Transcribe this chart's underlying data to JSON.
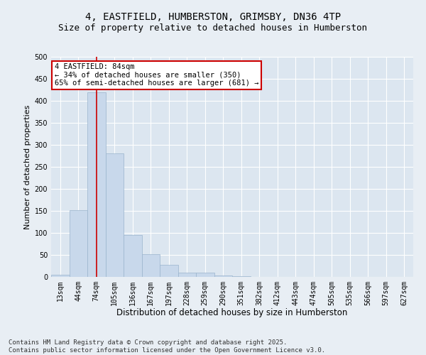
{
  "title_line1": "4, EASTFIELD, HUMBERSTON, GRIMSBY, DN36 4TP",
  "title_line2": "Size of property relative to detached houses in Humberston",
  "xlabel": "Distribution of detached houses by size in Humberston",
  "ylabel": "Number of detached properties",
  "bar_color": "#c8d8eb",
  "bar_edge_color": "#9ab4cc",
  "categories": [
    "13sqm",
    "44sqm",
    "74sqm",
    "105sqm",
    "136sqm",
    "167sqm",
    "197sqm",
    "228sqm",
    "259sqm",
    "290sqm",
    "351sqm",
    "382sqm",
    "412sqm",
    "443sqm",
    "474sqm",
    "505sqm",
    "535sqm",
    "566sqm",
    "597sqm",
    "627sqm"
  ],
  "values": [
    5,
    152,
    420,
    280,
    95,
    52,
    28,
    10,
    10,
    3,
    2,
    0,
    0,
    0,
    0,
    0,
    0,
    0,
    0,
    0
  ],
  "ylim": [
    0,
    500
  ],
  "yticks": [
    0,
    50,
    100,
    150,
    200,
    250,
    300,
    350,
    400,
    450,
    500
  ],
  "red_line_x": 2,
  "annotation_text": "4 EASTFIELD: 84sqm\n← 34% of detached houses are smaller (350)\n65% of semi-detached houses are larger (681) →",
  "annotation_box_color": "#ffffff",
  "annotation_box_edge": "#cc0000",
  "footer_line1": "Contains HM Land Registry data © Crown copyright and database right 2025.",
  "footer_line2": "Contains public sector information licensed under the Open Government Licence v3.0.",
  "bg_color": "#e8eef4",
  "plot_bg_color": "#dce6f0",
  "grid_color": "#ffffff",
  "title_fontsize": 10,
  "subtitle_fontsize": 9,
  "tick_fontsize": 7,
  "ylabel_fontsize": 8,
  "xlabel_fontsize": 8.5,
  "footer_fontsize": 6.5,
  "annot_fontsize": 7.5
}
